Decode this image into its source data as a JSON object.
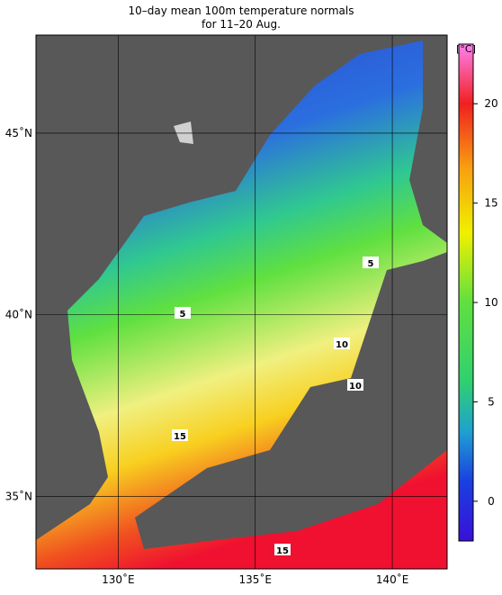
{
  "title": [
    "10–day mean 100m temperature normals",
    "for 11–20 Aug."
  ],
  "map": {
    "lonlim": [
      127,
      142
    ],
    "latlim": [
      33,
      47.7
    ],
    "lon_ticks": [
      {
        "value": 130,
        "label": "130˚E"
      },
      {
        "value": 135,
        "label": "135˚E"
      },
      {
        "value": 140,
        "label": "140˚E"
      }
    ],
    "lat_ticks": [
      {
        "value": 35,
        "label": "35˚N"
      },
      {
        "value": 40,
        "label": "40˚N"
      },
      {
        "value": 45,
        "label": "45˚N"
      }
    ],
    "contour_labels": [
      5,
      5,
      10,
      10,
      15,
      15
    ]
  },
  "colorbar": {
    "unit": "[°C]",
    "lim": [
      -2,
      23
    ],
    "ticks": [
      0,
      5,
      10,
      15,
      20
    ]
  }
}
